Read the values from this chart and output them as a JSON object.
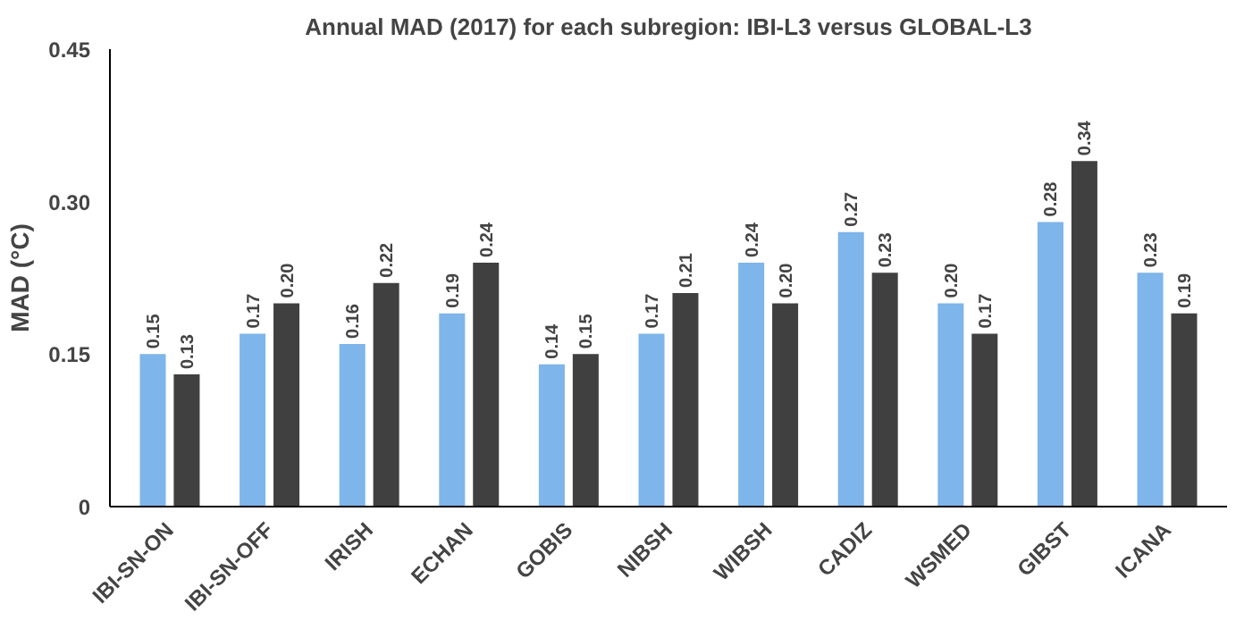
{
  "chart_data": {
    "type": "bar",
    "title": "Annual MAD (2017) for each subregion: IBI-L3 versus GLOBAL-L3",
    "ylabel": "MAD (°C)",
    "categories": [
      "IBI-SN-ON",
      "IBI-SN-OFF",
      "IRISH",
      "ECHAN",
      "GOBIS",
      "NIBSH",
      "WIBSH",
      "CADIZ",
      "WSMED",
      "GIBST",
      "ICANA"
    ],
    "series": [
      {
        "color": "#7eb5ea",
        "values": [
          0.15,
          0.17,
          0.16,
          0.19,
          0.14,
          0.17,
          0.24,
          0.27,
          0.2,
          0.28,
          0.23
        ],
        "value_labels": [
          "0.15",
          "0.17",
          "0.16",
          "0.19",
          "0.14",
          "0.17",
          "0.24",
          "0.27",
          "0.20",
          "0.28",
          "0.23"
        ]
      },
      {
        "color": "#404040",
        "values": [
          0.13,
          0.2,
          0.22,
          0.24,
          0.15,
          0.21,
          0.2,
          0.23,
          0.17,
          0.34,
          0.19
        ],
        "value_labels": [
          "0.13",
          "0.20",
          "0.22",
          "0.24",
          "0.15",
          "0.21",
          "0.20",
          "0.23",
          "0.17",
          "0.34",
          "0.19"
        ]
      }
    ],
    "ylim": [
      0,
      0.45
    ],
    "yticks": [
      {
        "value": 0,
        "label": "0"
      },
      {
        "value": 0.15,
        "label": "0.15"
      },
      {
        "value": 0.3,
        "label": "0.30"
      },
      {
        "value": 0.45,
        "label": "0.45"
      }
    ],
    "grid": false
  }
}
